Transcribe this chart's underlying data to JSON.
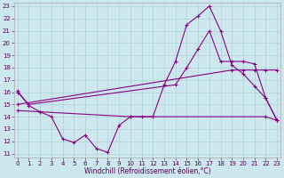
{
  "bg_color": "#cce8ee",
  "grid_color": "#aacccc",
  "line_color": "#880088",
  "xlim_min": -0.3,
  "xlim_max": 23.3,
  "ylim_min": 10.7,
  "ylim_max": 23.3,
  "xticks": [
    0,
    1,
    2,
    3,
    4,
    5,
    6,
    7,
    8,
    9,
    10,
    11,
    12,
    13,
    14,
    15,
    16,
    17,
    18,
    19,
    20,
    21,
    22,
    23
  ],
  "yticks": [
    11,
    12,
    13,
    14,
    15,
    16,
    17,
    18,
    19,
    20,
    21,
    22,
    23
  ],
  "series": [
    {
      "x": [
        0,
        1,
        2,
        3,
        4,
        5,
        6,
        7,
        8,
        9,
        10,
        11,
        12,
        13,
        14,
        15,
        16,
        17,
        18,
        19,
        20,
        21,
        22,
        23
      ],
      "y": [
        16.1,
        14.9,
        14.4,
        14.0,
        12.2,
        11.9,
        12.5,
        11.4,
        11.1,
        13.3,
        14.0,
        14.0,
        14.0,
        16.6,
        18.5,
        21.5,
        22.2,
        23.0,
        21.0,
        18.2,
        17.5,
        16.5,
        15.5,
        13.7
      ]
    },
    {
      "x": [
        0,
        1,
        14,
        15,
        16,
        17,
        18,
        19,
        20,
        21,
        22,
        23
      ],
      "y": [
        16.0,
        15.0,
        16.6,
        18.0,
        19.5,
        21.0,
        18.5,
        18.5,
        18.5,
        18.3,
        15.5,
        13.7
      ]
    },
    {
      "x": [
        0,
        19,
        20,
        21,
        22,
        23
      ],
      "y": [
        15.0,
        17.8,
        17.8,
        17.8,
        17.8,
        17.8
      ]
    },
    {
      "x": [
        0,
        10,
        22,
        23
      ],
      "y": [
        14.5,
        14.0,
        14.0,
        13.7
      ]
    }
  ],
  "xlabel": "Windchill (Refroidissement éolien,°C)",
  "tick_fontsize": 5.0,
  "xlabel_fontsize": 5.5,
  "tick_color": "#550055"
}
